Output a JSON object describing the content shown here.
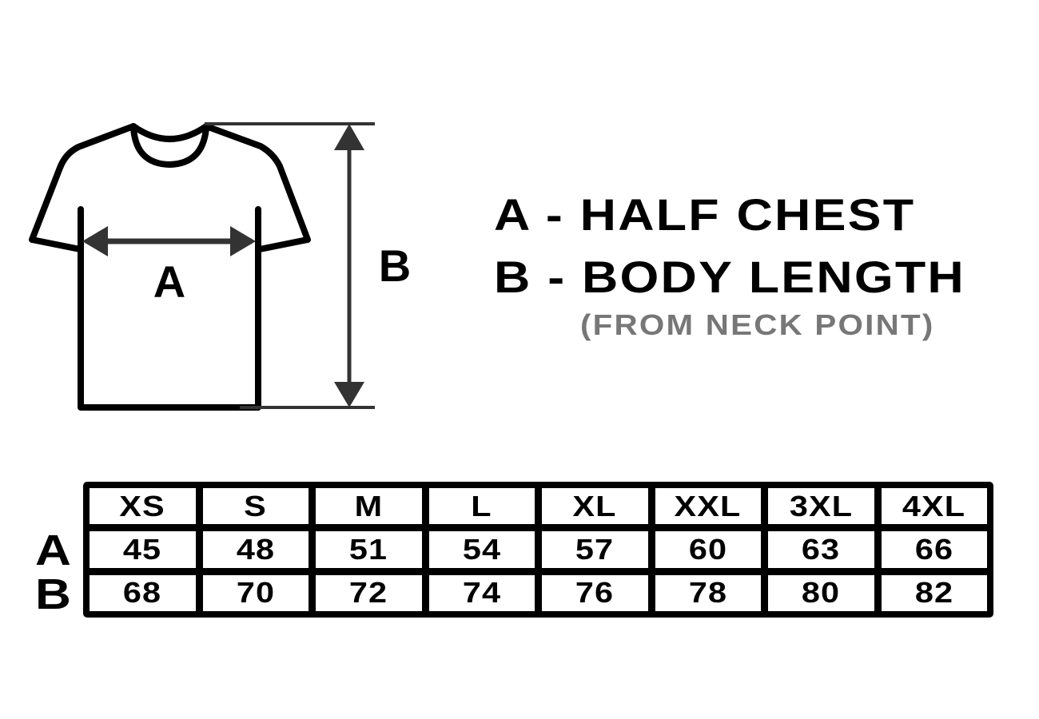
{
  "diagram": {
    "label_a": "A",
    "label_b": "B"
  },
  "legend": {
    "a": "A - HALF CHEST",
    "b": "B - BODY LENGTH",
    "note": "(FROM NECK POINT)"
  },
  "colors": {
    "outline": "#000000",
    "arrow": "#333333",
    "note": "#777777"
  },
  "table": {
    "sizes": [
      "XS",
      "S",
      "M",
      "L",
      "XL",
      "XXL",
      "3XL",
      "4XL"
    ],
    "rows": [
      {
        "label": "A",
        "values": [
          "45",
          "48",
          "51",
          "54",
          "57",
          "60",
          "63",
          "66"
        ]
      },
      {
        "label": "B",
        "values": [
          "68",
          "70",
          "72",
          "74",
          "76",
          "78",
          "80",
          "82"
        ]
      }
    ]
  }
}
